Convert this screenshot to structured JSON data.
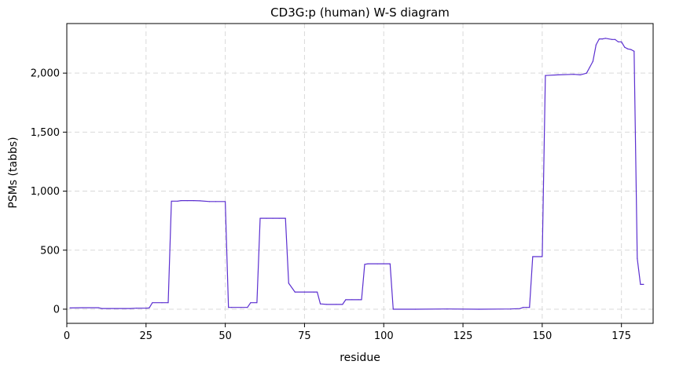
{
  "chart_data": {
    "type": "line",
    "title": "CD3G:p (human) W-S diagram",
    "xlabel": "residue",
    "ylabel": "PSMs (tabbs)",
    "xlim": [
      0,
      185
    ],
    "ylim": [
      -120,
      2420
    ],
    "xticks": [
      0,
      25,
      50,
      75,
      100,
      125,
      150,
      175
    ],
    "yticks": [
      0,
      500,
      1000,
      1500,
      2000
    ],
    "ytick_labels": [
      "0",
      "500",
      "1,000",
      "1,500",
      "2,000"
    ],
    "grid": true,
    "line_color": "#5b2fd0",
    "series": [
      {
        "x": [
          1,
          5,
          10,
          11,
          15,
          20,
          22,
          25,
          26,
          27,
          30,
          32,
          33,
          35,
          36,
          38,
          40,
          42,
          45,
          47,
          50,
          51,
          52,
          55,
          57,
          58,
          60,
          61,
          63,
          65,
          67,
          69,
          70,
          72,
          75,
          78,
          79,
          80,
          82,
          85,
          87,
          88,
          90,
          92,
          93,
          94,
          95,
          98,
          100,
          102,
          103,
          110,
          120,
          130,
          140,
          143,
          144,
          145,
          146,
          147,
          150,
          151,
          155,
          160,
          162,
          164,
          165,
          166,
          167,
          168,
          169,
          170,
          172,
          173,
          174,
          175,
          176,
          177,
          178,
          179,
          180,
          181,
          182
        ],
        "y": [
          10,
          12,
          12,
          6,
          6,
          6,
          8,
          8,
          10,
          55,
          55,
          55,
          915,
          915,
          920,
          920,
          920,
          918,
          912,
          912,
          912,
          15,
          15,
          15,
          15,
          55,
          55,
          770,
          770,
          770,
          770,
          770,
          220,
          145,
          145,
          145,
          145,
          45,
          40,
          40,
          40,
          80,
          80,
          80,
          80,
          380,
          385,
          385,
          385,
          385,
          0,
          0,
          2,
          0,
          2,
          5,
          15,
          15,
          15,
          445,
          445,
          1980,
          1985,
          1990,
          1985,
          2000,
          2050,
          2100,
          2240,
          2290,
          2290,
          2295,
          2285,
          2285,
          2265,
          2265,
          2220,
          2205,
          2200,
          2185,
          430,
          210,
          210
        ]
      }
    ]
  }
}
